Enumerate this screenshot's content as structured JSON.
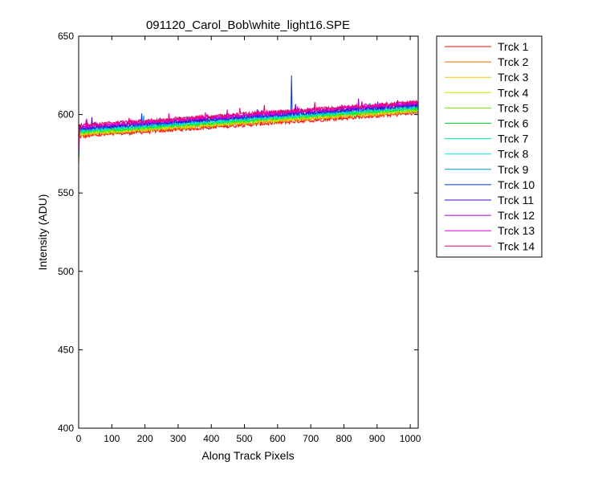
{
  "chart_data": {
    "type": "line",
    "title": "091120_Carol_Bob\\white_light16.SPE",
    "xlabel": "Along Track Pixels",
    "ylabel": "Intensity (ADU)",
    "xlim": [
      0,
      1024
    ],
    "ylim": [
      400,
      650
    ],
    "xticks": [
      0,
      100,
      200,
      300,
      400,
      500,
      600,
      700,
      800,
      900,
      1000
    ],
    "yticks": [
      400,
      450,
      500,
      550,
      600,
      650
    ],
    "grid": false,
    "legend_position": "outside-right",
    "series": [
      {
        "name": "Trck 1",
        "color": "#ff0000",
        "start": 586,
        "end": 601
      },
      {
        "name": "Trck 2",
        "color": "#e86a00",
        "start": 587,
        "end": 602
      },
      {
        "name": "Trck 3",
        "color": "#e8c800",
        "start": 587.5,
        "end": 602.5
      },
      {
        "name": "Trck 4",
        "color": "#c8e800",
        "start": 588,
        "end": 603
      },
      {
        "name": "Trck 5",
        "color": "#6ae800",
        "start": 588.5,
        "end": 603.5
      },
      {
        "name": "Trck 6",
        "color": "#00e832",
        "start": 589,
        "end": 604
      },
      {
        "name": "Trck 7",
        "color": "#00e89c",
        "start": 589.5,
        "end": 604.5
      },
      {
        "name": "Trck 8",
        "color": "#00e8e8",
        "start": 590,
        "end": 605
      },
      {
        "name": "Trck 9",
        "color": "#0096c8",
        "start": 590.5,
        "end": 605.5
      },
      {
        "name": "Trck 10",
        "color": "#0032e8",
        "start": 591,
        "end": 606,
        "spike": {
          "x": 642,
          "y": 625
        }
      },
      {
        "name": "Trck 11",
        "color": "#4b00c8",
        "start": 591.5,
        "end": 606.5
      },
      {
        "name": "Trck 12",
        "color": "#a000e8",
        "start": 592,
        "end": 607
      },
      {
        "name": "Trck 13",
        "color": "#e800e8",
        "start": 592.5,
        "end": 607.5
      },
      {
        "name": "Trck 14",
        "color": "#e80064",
        "start": 593,
        "end": 608
      }
    ]
  }
}
